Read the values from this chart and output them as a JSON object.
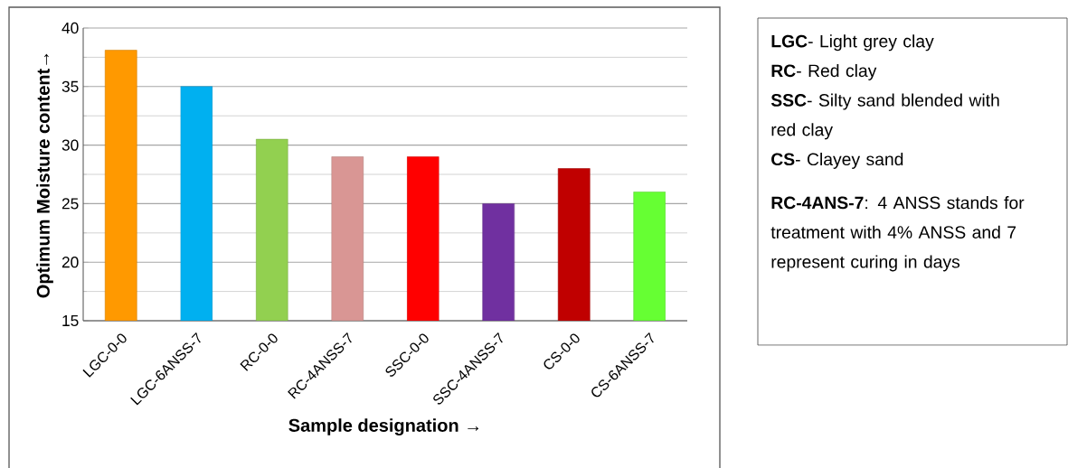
{
  "chart_data": {
    "type": "bar",
    "xlabel": "Sample designation →",
    "ylabel": "Optimum  Moisture  content→",
    "categories": [
      "LGC-0-0",
      "LGC-6ANSS-7",
      "RC-0-0",
      "RC-4ANSS-7",
      "SSC-0-0",
      "SSC-4ANSS-7",
      "CS-0-0",
      "CS-6ANSS-7"
    ],
    "values": [
      38.1,
      35,
      30.5,
      29,
      29,
      25,
      28,
      26
    ],
    "colors": [
      "#ff9900",
      "#00b0f0",
      "#92d050",
      "#d99694",
      "#ff0000",
      "#7030a0",
      "#c00000",
      "#66ff33"
    ],
    "ylim": [
      15,
      40
    ],
    "yticks": [
      15,
      20,
      25,
      30,
      35,
      40
    ],
    "grid": "y",
    "annotations": [
      "**LGC**- Light grey clay",
      "**RC**- Red clay",
      "**SSC**- Silty sand blended with red clay",
      "**CS**- Clayey sand",
      "**RC-4ANS-7**: 4 ANSS stands for treatment with 4% ANSS and 7 represent curing in days"
    ]
  }
}
